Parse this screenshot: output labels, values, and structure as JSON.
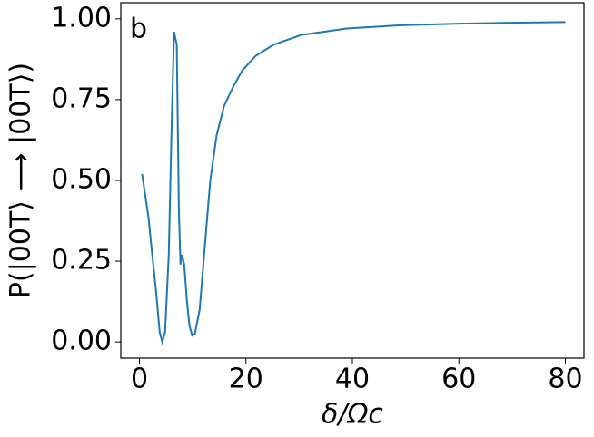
{
  "chart_data": {
    "type": "line",
    "x_label": "δ/Ωc",
    "y_label": "P(|00T⟩ ⟶ |00T⟩)",
    "annotation": "b",
    "color": "#1f77b4",
    "x": [
      0.5,
      1.7,
      2.4,
      3.1,
      3.8,
      4.3,
      4.8,
      5.5,
      6.0,
      6.5,
      7.0,
      7.4,
      7.7,
      8.0,
      8.4,
      8.9,
      9.4,
      9.9,
      10.4,
      11.3,
      12.3,
      13.3,
      14.5,
      15.9,
      17.6,
      19.3,
      21.8,
      25.2,
      30.4,
      38.9,
      49.1,
      59.3,
      69.6,
      80.0
    ],
    "values": [
      0.52,
      0.385,
      0.27,
      0.16,
      0.03,
      0.0,
      0.03,
      0.27,
      0.64,
      0.96,
      0.92,
      0.41,
      0.24,
      0.27,
      0.24,
      0.13,
      0.05,
      0.02,
      0.025,
      0.1,
      0.3,
      0.5,
      0.64,
      0.73,
      0.79,
      0.84,
      0.885,
      0.92,
      0.95,
      0.97,
      0.98,
      0.985,
      0.988,
      0.99
    ],
    "xlim": [
      -3.5,
      83.5
    ],
    "ylim": [
      -0.05,
      1.05
    ],
    "xticks": [
      0,
      20,
      40,
      60,
      80
    ],
    "yticks": [
      {
        "value": 0,
        "label": "0.00"
      },
      {
        "value": 0.25,
        "label": "0.25"
      },
      {
        "value": 0.5,
        "label": "0.50"
      },
      {
        "value": 0.75,
        "label": "0.75"
      },
      {
        "value": 1,
        "label": "1.00"
      }
    ]
  }
}
